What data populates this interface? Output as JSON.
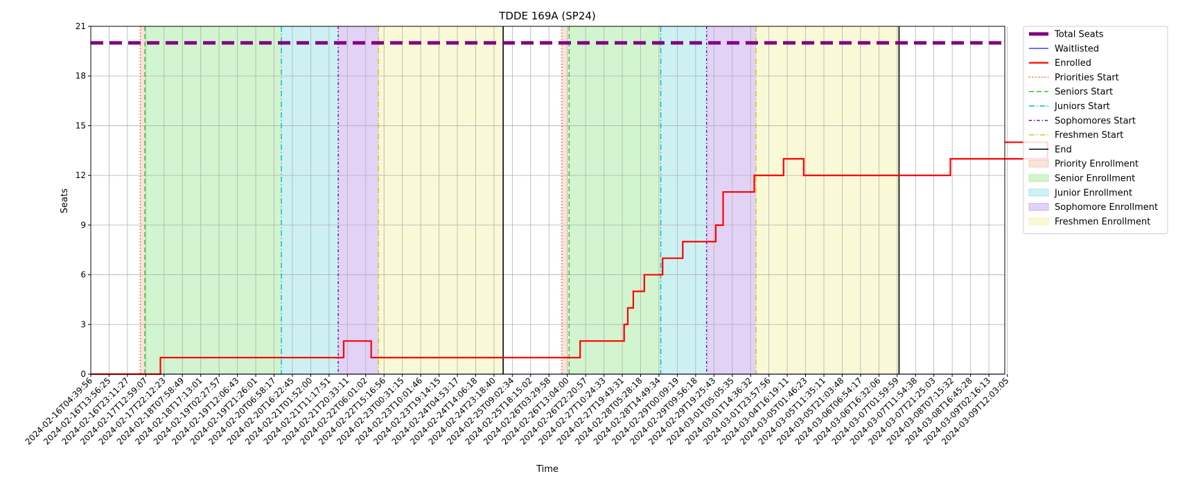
{
  "chart_data": {
    "type": "line",
    "title": "TDDE 169A (SP24)",
    "xlabel": "Time",
    "ylabel": "Seats",
    "ylim": [
      0,
      21
    ],
    "yticks": [
      0,
      3,
      6,
      9,
      12,
      15,
      18,
      21
    ],
    "grid": true,
    "legend_position": "outside-right",
    "x_tick_labels": [
      "2024-02-16T04:39:56",
      "2024-02-16T13:56:25",
      "2024-02-16T23:11:27",
      "2024-02-17T12:59:07",
      "2024-02-17T22:12:23",
      "2024-02-18T07:58:49",
      "2024-02-18T17:13:01",
      "2024-02-19T02:27:57",
      "2024-02-19T12:06:43",
      "2024-02-19T21:26:01",
      "2024-02-20T06:58:17",
      "2024-02-20T16:22:45",
      "2024-02-21T01:52:00",
      "2024-02-21T11:17:51",
      "2024-02-21T20:33:11",
      "2024-02-22T06:01:02",
      "2024-02-22T15:16:56",
      "2024-02-23T00:31:15",
      "2024-02-23T10:01:46",
      "2024-02-23T19:14:15",
      "2024-02-24T04:53:17",
      "2024-02-24T14:06:18",
      "2024-02-24T23:18:40",
      "2024-02-25T09:02:34",
      "2024-02-25T18:15:02",
      "2024-02-26T03:29:58",
      "2024-02-26T13:04:00",
      "2024-02-26T22:20:57",
      "2024-02-27T10:24:33",
      "2024-02-27T19:43:31",
      "2024-02-28T05:28:18",
      "2024-02-28T14:49:34",
      "2024-02-29T00:09:19",
      "2024-02-29T09:56:18",
      "2024-02-29T19:25:43",
      "2024-03-01T05:05:35",
      "2024-03-01T14:36:32",
      "2024-03-01T23:57:56",
      "2024-03-04T16:19:11",
      "2024-03-05T01:46:23",
      "2024-03-05T11:35:11",
      "2024-03-05T21:03:48",
      "2024-03-06T06:54:17",
      "2024-03-06T16:32:06",
      "2024-03-07T01:59:59",
      "2024-03-07T11:54:38",
      "2024-03-07T21:25:03",
      "2024-03-08T07:15:32",
      "2024-03-08T16:45:28",
      "2024-03-09T02:16:13",
      "2024-03-09T12:03:05"
    ],
    "series": [
      {
        "name": "Total Seats",
        "color": "#800080",
        "style": "dashed",
        "x_index": [
          0,
          52.5
        ],
        "values": [
          20,
          20
        ]
      },
      {
        "name": "Waitlisted",
        "color": "#0000ff",
        "style": "solid",
        "x_index": [
          0,
          52.5
        ],
        "values": [
          0,
          0
        ]
      },
      {
        "name": "Enrolled",
        "color": "#ff0000",
        "style": "step",
        "x_index": [
          0,
          3.8,
          13.8,
          15.3,
          26.7,
          29.1,
          29.3,
          29.6,
          30.2,
          31.2,
          32.3,
          34.1,
          34.5,
          36.2,
          37.8,
          38.9,
          39.2,
          40.3,
          46.9,
          52.2
        ],
        "values": [
          0,
          1,
          2,
          1,
          2,
          3,
          4,
          5,
          6,
          7,
          8,
          9,
          11,
          12,
          13,
          12,
          12,
          12,
          13,
          14
        ]
      }
    ],
    "vertical_markers": [
      {
        "name": "Priorities Start",
        "color": "#ff4500",
        "style": "dotted",
        "x_index": [
          2.7,
          25.7
        ]
      },
      {
        "name": "Seniors Start",
        "color": "#22cc22",
        "style": "dashed",
        "x_index": [
          2.95,
          26.1
        ]
      },
      {
        "name": "Juniors Start",
        "color": "#00bbbb",
        "style": "dashdot",
        "x_index": [
          10.4,
          31.1
        ]
      },
      {
        "name": "Sophomores Start",
        "color": "#6600cc",
        "style": "dashdot-dense",
        "x_index": [
          13.5,
          33.6
        ]
      },
      {
        "name": "Freshmen Start",
        "color": "#cccc00",
        "style": "dashdot",
        "x_index": [
          15.7,
          36.3
        ]
      },
      {
        "name": "End",
        "color": "#000000",
        "style": "solid",
        "x_index": [
          22.5,
          44.1
        ]
      }
    ],
    "shaded_periods": [
      {
        "name": "Priority Enrollment",
        "color": "#f4c7b5",
        "ranges": [
          [
            2.7,
            2.95
          ],
          [
            25.7,
            26.1
          ]
        ]
      },
      {
        "name": "Senior Enrollment",
        "color": "#a6e9a0",
        "ranges": [
          [
            2.95,
            10.4
          ],
          [
            26.1,
            31.1
          ]
        ]
      },
      {
        "name": "Junior Enrollment",
        "color": "#9be4e8",
        "ranges": [
          [
            10.4,
            13.5
          ],
          [
            31.1,
            33.6
          ]
        ]
      },
      {
        "name": "Sophomore Enrollment",
        "color": "#c5a6ee",
        "ranges": [
          [
            13.5,
            15.7
          ],
          [
            33.6,
            36.3
          ]
        ]
      },
      {
        "name": "Freshmen Enrollment",
        "color": "#f3f3b0",
        "ranges": [
          [
            15.7,
            22.5
          ],
          [
            36.3,
            44.1
          ]
        ]
      }
    ],
    "legend": [
      "Total Seats",
      "Waitlisted",
      "Enrolled",
      "Priorities Start",
      "Seniors Start",
      "Juniors Start",
      "Sophomores Start",
      "Freshmen Start",
      "End",
      "Priority Enrollment",
      "Senior Enrollment",
      "Junior Enrollment",
      "Sophomore Enrollment",
      "Freshmen Enrollment"
    ]
  }
}
